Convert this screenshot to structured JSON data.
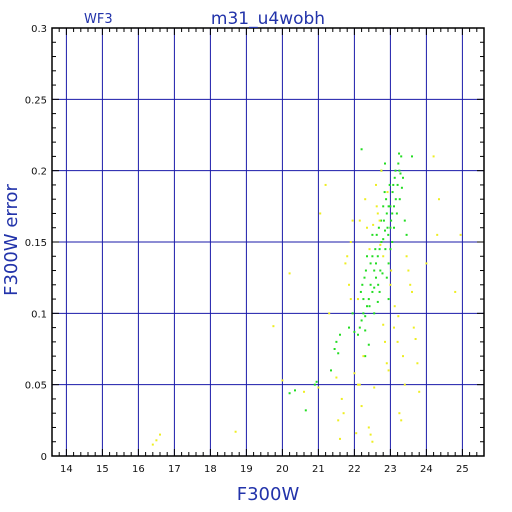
{
  "chart_data": {
    "type": "scatter",
    "title": "m31_u4wobh",
    "corner_label": "WF3",
    "xlabel": "F300W",
    "ylabel": "F300W error",
    "xlim": [
      13.6,
      25.6
    ],
    "ylim": [
      0,
      0.3
    ],
    "xticks": [
      14,
      15,
      16,
      17,
      18,
      19,
      20,
      21,
      22,
      23,
      24,
      25
    ],
    "yticks": [
      0,
      0.05,
      0.1,
      0.15,
      0.2,
      0.25,
      0.3
    ],
    "ytick_labels": [
      "0",
      "0.05",
      "0.1",
      "0.15",
      "0.2",
      "0.25",
      "0.3"
    ],
    "grid": true,
    "colors": {
      "frame": "#000000",
      "grid": "#1a1aaa",
      "text": "#2233aa",
      "green": "#22dd22",
      "yellow": "#eeee22"
    },
    "series": [
      {
        "color": "#22dd22",
        "points": [
          [
            20.2,
            0.044
          ],
          [
            20.35,
            0.046
          ],
          [
            20.65,
            0.032
          ],
          [
            20.9,
            0.05
          ],
          [
            20.95,
            0.052
          ],
          [
            21.35,
            0.06
          ],
          [
            21.45,
            0.075
          ],
          [
            21.5,
            0.08
          ],
          [
            21.55,
            0.072
          ],
          [
            21.6,
            0.085
          ],
          [
            21.85,
            0.09
          ],
          [
            21.95,
            0.1
          ],
          [
            22.0,
            0.087
          ],
          [
            22.15,
            0.09
          ],
          [
            22.2,
            0.095
          ],
          [
            22.25,
            0.1
          ],
          [
            22.3,
            0.088
          ],
          [
            22.18,
            0.115
          ],
          [
            22.22,
            0.12
          ],
          [
            22.28,
            0.125
          ],
          [
            22.32,
            0.13
          ],
          [
            22.25,
            0.11
          ],
          [
            22.35,
            0.105
          ],
          [
            22.3,
            0.098
          ],
          [
            22.4,
            0.11
          ],
          [
            22.45,
            0.12
          ],
          [
            22.5,
            0.115
          ],
          [
            22.55,
            0.13
          ],
          [
            22.6,
            0.125
          ],
          [
            22.5,
            0.14
          ],
          [
            22.42,
            0.105
          ],
          [
            22.55,
            0.118
          ],
          [
            22.6,
            0.135
          ],
          [
            22.65,
            0.14
          ],
          [
            22.7,
            0.145
          ],
          [
            22.75,
            0.15
          ],
          [
            22.62,
            0.155
          ],
          [
            22.68,
            0.16
          ],
          [
            22.72,
            0.13
          ],
          [
            22.78,
            0.128
          ],
          [
            22.66,
            0.12
          ],
          [
            22.74,
            0.165
          ],
          [
            22.8,
            0.152
          ],
          [
            22.85,
            0.158
          ],
          [
            22.9,
            0.17
          ],
          [
            22.95,
            0.175
          ],
          [
            22.82,
            0.165
          ],
          [
            22.88,
            0.18
          ],
          [
            22.92,
            0.16
          ],
          [
            22.86,
            0.145
          ],
          [
            22.94,
            0.155
          ],
          [
            22.84,
            0.185
          ],
          [
            23.0,
            0.16
          ],
          [
            23.05,
            0.17
          ],
          [
            23.1,
            0.175
          ],
          [
            23.15,
            0.18
          ],
          [
            23.02,
            0.165
          ],
          [
            23.08,
            0.19
          ],
          [
            23.12,
            0.195
          ],
          [
            23.06,
            0.185
          ],
          [
            23.14,
            0.2
          ],
          [
            23.0,
            0.175
          ],
          [
            23.2,
            0.19
          ],
          [
            23.25,
            0.2
          ],
          [
            23.3,
            0.21
          ],
          [
            23.35,
            0.195
          ],
          [
            23.22,
            0.205
          ],
          [
            23.28,
            0.198
          ],
          [
            23.32,
            0.188
          ],
          [
            23.26,
            0.18
          ],
          [
            23.24,
            0.212
          ],
          [
            23.0,
            0.145
          ],
          [
            22.95,
            0.135
          ],
          [
            22.55,
            0.1
          ],
          [
            22.7,
            0.115
          ],
          [
            22.65,
            0.108
          ],
          [
            22.3,
            0.07
          ],
          [
            22.1,
            0.085
          ],
          [
            22.4,
            0.078
          ],
          [
            22.2,
            0.215
          ],
          [
            22.75,
            0.2
          ],
          [
            22.85,
            0.205
          ],
          [
            23.6,
            0.21
          ],
          [
            23.4,
            0.165
          ],
          [
            23.45,
            0.155
          ],
          [
            22.45,
            0.135
          ],
          [
            22.35,
            0.14
          ],
          [
            22.5,
            0.155
          ],
          [
            22.58,
            0.145
          ],
          [
            22.9,
            0.125
          ],
          [
            22.95,
            0.11
          ],
          [
            23.05,
            0.15
          ],
          [
            23.1,
            0.16
          ],
          [
            23.18,
            0.17
          ],
          [
            22.98,
            0.19
          ],
          [
            22.8,
            0.175
          ]
        ]
      },
      {
        "color": "#eeee22",
        "points": [
          [
            16.4,
            0.008
          ],
          [
            16.6,
            0.015
          ],
          [
            16.5,
            0.011
          ],
          [
            18.7,
            0.017
          ],
          [
            19.75,
            0.091
          ],
          [
            20.2,
            0.128
          ],
          [
            20.0,
            0.053
          ],
          [
            20.6,
            0.045
          ],
          [
            21.0,
            0.048
          ],
          [
            21.05,
            0.17
          ],
          [
            21.2,
            0.19
          ],
          [
            21.55,
            0.025
          ],
          [
            21.6,
            0.012
          ],
          [
            21.65,
            0.04
          ],
          [
            21.7,
            0.03
          ],
          [
            21.75,
            0.135
          ],
          [
            21.8,
            0.14
          ],
          [
            21.9,
            0.15
          ],
          [
            21.95,
            0.165
          ],
          [
            21.85,
            0.12
          ],
          [
            22.05,
            0.016
          ],
          [
            22.1,
            0.05
          ],
          [
            22.15,
            0.05
          ],
          [
            22.2,
            0.035
          ],
          [
            22.25,
            0.07
          ],
          [
            22.3,
            0.18
          ],
          [
            22.35,
            0.16
          ],
          [
            22.4,
            0.02
          ],
          [
            22.45,
            0.015
          ],
          [
            22.5,
            0.01
          ],
          [
            22.55,
            0.048
          ],
          [
            22.6,
            0.19
          ],
          [
            22.65,
            0.17
          ],
          [
            22.7,
            0.165
          ],
          [
            22.75,
            0.2
          ],
          [
            22.8,
            0.092
          ],
          [
            22.85,
            0.08
          ],
          [
            22.9,
            0.065
          ],
          [
            22.95,
            0.06
          ],
          [
            23.0,
            0.12
          ],
          [
            23.1,
            0.09
          ],
          [
            23.2,
            0.08
          ],
          [
            23.25,
            0.03
          ],
          [
            23.3,
            0.025
          ],
          [
            23.35,
            0.07
          ],
          [
            23.45,
            0.14
          ],
          [
            23.5,
            0.13
          ],
          [
            23.55,
            0.12
          ],
          [
            23.6,
            0.115
          ],
          [
            23.65,
            0.09
          ],
          [
            23.7,
            0.082
          ],
          [
            23.75,
            0.065
          ],
          [
            23.8,
            0.045
          ],
          [
            24.0,
            0.135
          ],
          [
            24.2,
            0.21
          ],
          [
            24.3,
            0.155
          ],
          [
            24.35,
            0.18
          ],
          [
            24.8,
            0.115
          ],
          [
            24.95,
            0.155
          ],
          [
            22.15,
            0.165
          ],
          [
            22.42,
            0.145
          ],
          [
            22.52,
            0.162
          ],
          [
            22.62,
            0.175
          ],
          [
            22.72,
            0.148
          ],
          [
            22.92,
            0.185
          ],
          [
            23.02,
            0.13
          ],
          [
            23.12,
            0.105
          ],
          [
            23.22,
            0.098
          ],
          [
            23.4,
            0.05
          ],
          [
            21.5,
            0.055
          ],
          [
            21.3,
            0.1
          ],
          [
            21.9,
            0.11
          ],
          [
            22.0,
            0.058
          ],
          [
            22.1,
            0.11
          ],
          [
            22.8,
            0.14
          ]
        ]
      }
    ]
  }
}
